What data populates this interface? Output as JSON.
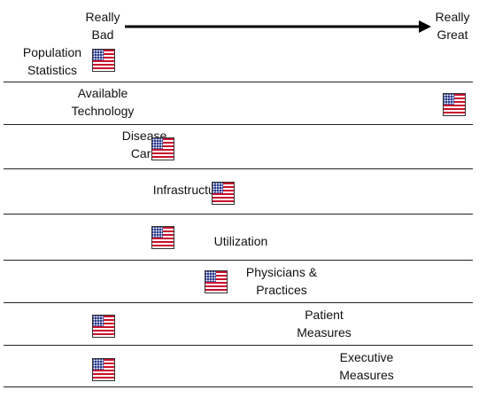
{
  "scale": {
    "low": [
      "Really",
      "Bad"
    ],
    "high": [
      "Really",
      "Great"
    ],
    "arrow_icon": "right-arrow-icon"
  },
  "rows": [
    {
      "label": [
        "Population",
        "Statistics"
      ],
      "rating": 0.0
    },
    {
      "label": [
        "Available",
        "Technology"
      ],
      "rating": 1.0
    },
    {
      "label": [
        "Disease",
        "Care"
      ],
      "rating": 0.17
    },
    {
      "label": [
        "Infrastructure"
      ],
      "rating": 0.34
    },
    {
      "label": [
        "Utilization"
      ],
      "rating": 0.17
    },
    {
      "label": [
        "Physicians &",
        "Practices"
      ],
      "rating": 0.32
    },
    {
      "label": [
        "Patient",
        "Measures"
      ],
      "rating": 0.0
    },
    {
      "label": [
        "Executive",
        "Measures"
      ],
      "rating": 0.0
    }
  ],
  "marker_icon": "us-flag-icon",
  "colors": {
    "flag_red": "#c8102e",
    "flag_blue": "#2b3d8f",
    "line": "#222222"
  }
}
